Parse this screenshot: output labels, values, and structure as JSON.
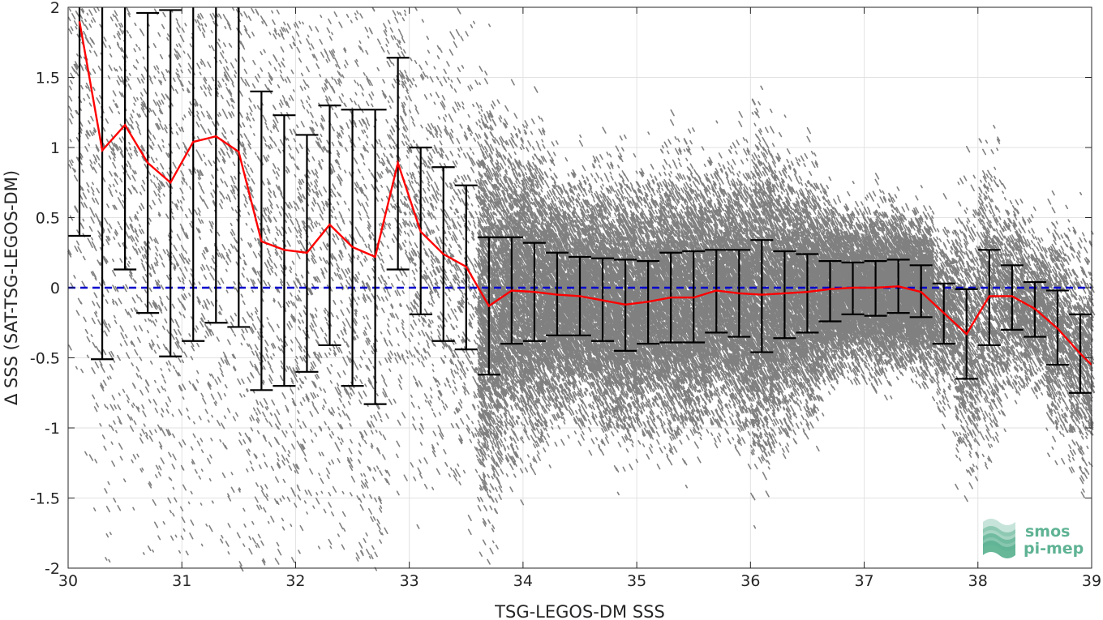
{
  "chart_data": {
    "type": "scatter",
    "xlabel": "TSG-LEGOS-DM SSS",
    "ylabel": "Δ SSS (SAT-TSG-LEGOS-DM)",
    "xlim": [
      30,
      39
    ],
    "ylim": [
      -2,
      2
    ],
    "x_ticks": [
      "30",
      "31",
      "32",
      "33",
      "34",
      "35",
      "36",
      "37",
      "38",
      "39"
    ],
    "y_ticks": [
      "2",
      "1.5",
      "1",
      "0.5",
      "0",
      "-0.5",
      "-1",
      "-1.5",
      "-2"
    ],
    "grid": true,
    "reference_line": {
      "y": 0,
      "color": "#0000cc",
      "style": "dashed"
    },
    "scatter_color": "#808080",
    "mean_line_color": "#ff0000",
    "errorbar_color": "#000000",
    "binned_stats": {
      "x": [
        30.1,
        30.3,
        30.5,
        30.7,
        30.9,
        31.1,
        31.3,
        31.5,
        31.7,
        31.9,
        32.1,
        32.3,
        32.5,
        32.7,
        32.9,
        33.1,
        33.3,
        33.5,
        33.7,
        33.9,
        34.1,
        34.3,
        34.5,
        34.7,
        34.9,
        35.1,
        35.3,
        35.5,
        35.7,
        35.9,
        36.1,
        36.3,
        36.5,
        36.7,
        36.9,
        37.1,
        37.3,
        37.5,
        37.7,
        37.9,
        38.1,
        38.3,
        38.5,
        38.7,
        38.9
      ],
      "mean": [
        1.9,
        0.98,
        1.16,
        0.89,
        0.75,
        1.04,
        1.08,
        0.97,
        0.33,
        0.27,
        0.25,
        0.45,
        0.29,
        0.22,
        0.89,
        0.4,
        0.24,
        0.15,
        -0.13,
        -0.02,
        -0.03,
        -0.05,
        -0.06,
        -0.09,
        -0.12,
        -0.1,
        -0.07,
        -0.07,
        -0.02,
        -0.04,
        -0.05,
        -0.04,
        -0.03,
        -0.01,
        0.0,
        0.0,
        0.01,
        -0.03,
        -0.18,
        -0.33,
        -0.06,
        -0.06,
        -0.15,
        -0.29,
        -0.47
      ],
      "lower": [
        0.37,
        -0.51,
        0.13,
        -0.18,
        -0.49,
        -0.38,
        -0.25,
        -0.28,
        -0.73,
        -0.7,
        -0.6,
        -0.41,
        -0.7,
        -0.83,
        0.13,
        -0.19,
        -0.38,
        -0.44,
        -0.62,
        -0.4,
        -0.38,
        -0.34,
        -0.34,
        -0.38,
        -0.45,
        -0.4,
        -0.39,
        -0.39,
        -0.32,
        -0.35,
        -0.46,
        -0.36,
        -0.32,
        -0.24,
        -0.19,
        -0.2,
        -0.18,
        -0.21,
        -0.4,
        -0.65,
        -0.41,
        -0.3,
        -0.35,
        -0.55,
        -0.75
      ],
      "upper": [
        2.0,
        2.0,
        2.0,
        1.96,
        1.98,
        2.0,
        2.0,
        2.0,
        1.4,
        1.23,
        1.09,
        1.3,
        1.27,
        1.27,
        1.64,
        1.0,
        0.86,
        0.73,
        0.36,
        0.36,
        0.32,
        0.25,
        0.22,
        0.21,
        0.2,
        0.19,
        0.25,
        0.26,
        0.27,
        0.27,
        0.34,
        0.26,
        0.24,
        0.19,
        0.18,
        0.19,
        0.2,
        0.16,
        0.03,
        -0.01,
        0.27,
        0.16,
        0.04,
        -0.02,
        -0.19
      ],
      "mean_line_end": {
        "x": 39.0,
        "y": -0.55
      }
    }
  },
  "logo": {
    "line1": "smos",
    "line2": "pi-mep",
    "color": "#5fb394"
  }
}
